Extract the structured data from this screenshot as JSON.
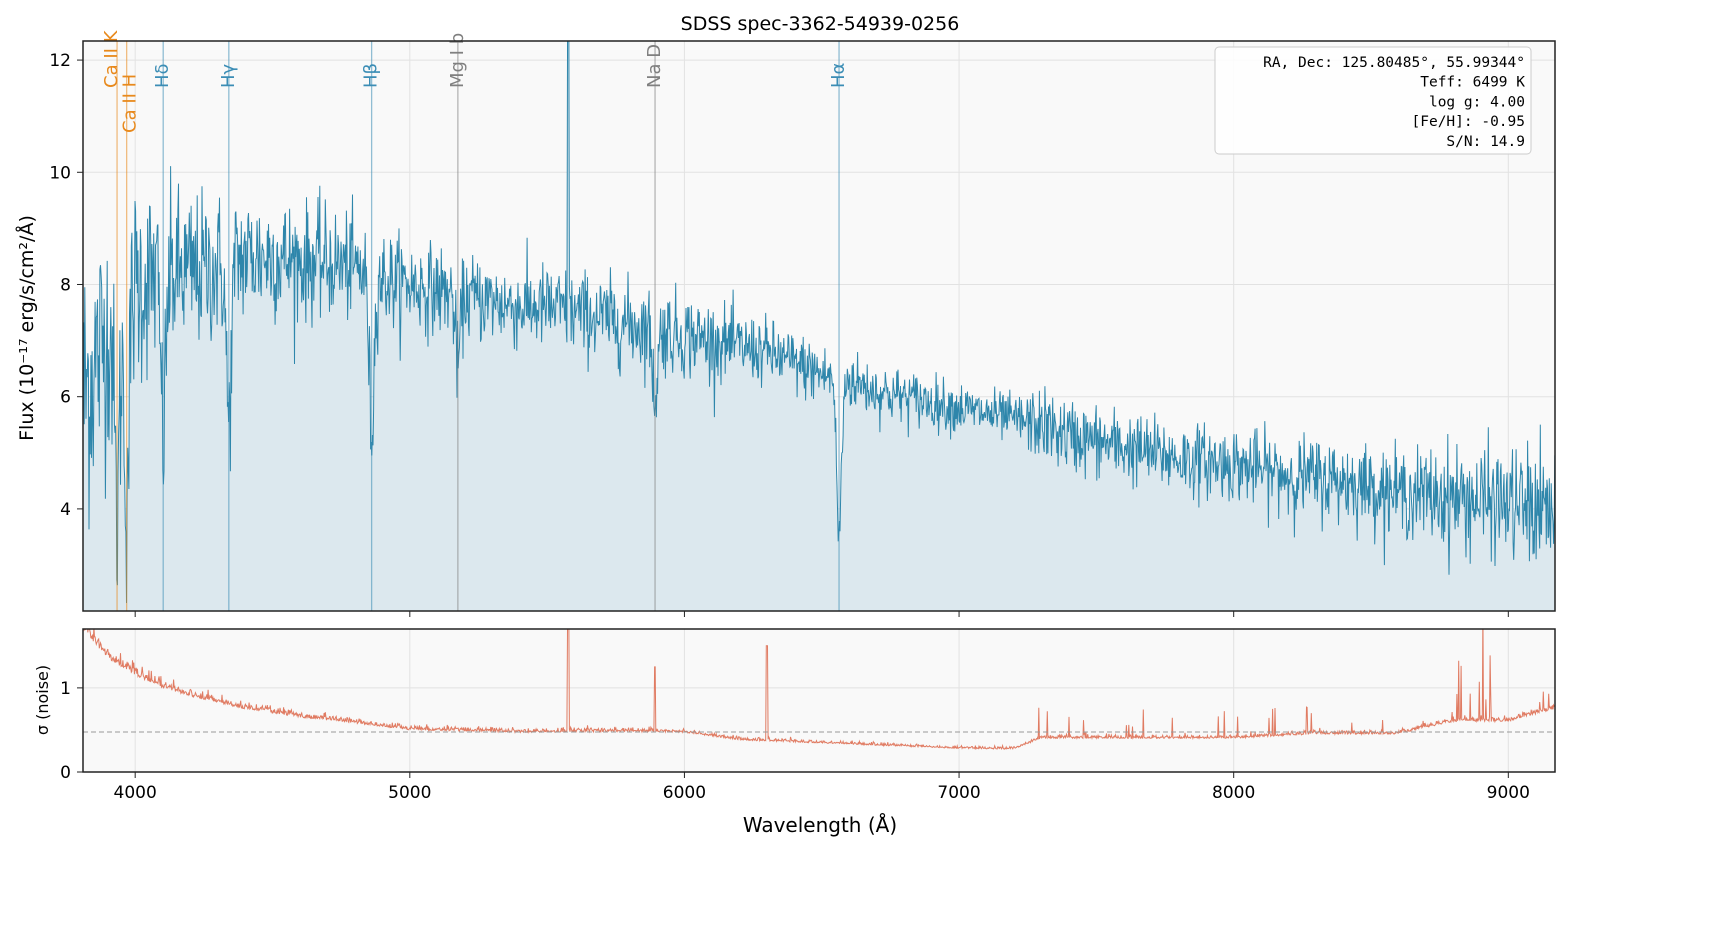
{
  "chart_data": [
    {
      "type": "line",
      "panel": "flux",
      "title": "SDSS spec-3362-54939-0256",
      "xlabel": "Wavelength (Å)",
      "ylabel": "Flux (10⁻¹⁷ erg/s/cm²/Å)",
      "xlim": [
        3810,
        9170
      ],
      "ylim": [
        2.18,
        12.34
      ],
      "xticks": [
        4000,
        5000,
        6000,
        7000,
        8000,
        9000
      ],
      "yticks": [
        4,
        6,
        8,
        10,
        12
      ],
      "grid": true,
      "series": [
        {
          "name": "flux",
          "color": "#2e86ab",
          "fill": "#dce8ee",
          "x": [
            3810,
            3900,
            4000,
            4100,
            4200,
            4300,
            4400,
            4500,
            4600,
            4700,
            4800,
            4900,
            5000,
            5100,
            5200,
            5300,
            5400,
            5500,
            5600,
            5700,
            5800,
            5900,
            6000,
            6100,
            6200,
            6300,
            6400,
            6500,
            6600,
            6700,
            6800,
            6900,
            7000,
            7100,
            7200,
            7300,
            7400,
            7500,
            7600,
            7700,
            7800,
            7900,
            8000,
            8100,
            8200,
            8300,
            8400,
            8500,
            8600,
            8700,
            8800,
            8900,
            9000,
            9100,
            9170
          ],
          "y": [
            6.0,
            7.2,
            8.0,
            8.2,
            8.2,
            8.3,
            8.5,
            8.5,
            8.4,
            8.4,
            8.3,
            8.1,
            8.0,
            7.9,
            7.8,
            7.7,
            7.6,
            7.6,
            7.5,
            7.4,
            7.3,
            7.2,
            7.1,
            7.0,
            6.9,
            6.8,
            6.6,
            6.4,
            6.3,
            6.1,
            6.0,
            5.9,
            5.8,
            5.7,
            5.6,
            5.5,
            5.3,
            5.2,
            5.1,
            5.0,
            4.9,
            4.85,
            4.8,
            4.7,
            4.6,
            4.55,
            4.5,
            4.4,
            4.3,
            4.25,
            4.2,
            4.15,
            4.1,
            4.0,
            3.9
          ]
        }
      ],
      "lines": [
        {
          "label": "Ca II K",
          "wavelength": 3934,
          "color": "#e8891c",
          "group": "ca"
        },
        {
          "label": "Ca II H",
          "wavelength": 3969,
          "color": "#e8891c",
          "group": "ca"
        },
        {
          "label": "Hδ",
          "wavelength": 4102,
          "color": "#3b8db5",
          "group": "h"
        },
        {
          "label": "Hγ",
          "wavelength": 4341,
          "color": "#3b8db5",
          "group": "h"
        },
        {
          "label": "Hβ",
          "wavelength": 4861,
          "color": "#3b8db5",
          "group": "h"
        },
        {
          "label": "Mg I b",
          "wavelength": 5175,
          "color": "#808080",
          "group": "metal"
        },
        {
          "label": "Na D",
          "wavelength": 5893,
          "color": "#808080",
          "group": "metal"
        },
        {
          "label": "Hα",
          "wavelength": 6563,
          "color": "#3b8db5",
          "group": "h"
        }
      ],
      "info_box": [
        "RA, Dec: 125.80485°, 55.99344°",
        "Teff: 6499 K",
        "log g: 4.00",
        "[Fe/H]: -0.95",
        "S/N: 14.9"
      ]
    },
    {
      "type": "line",
      "panel": "noise",
      "ylabel": "σ (noise)",
      "xlim": [
        3810,
        9170
      ],
      "ylim": [
        0,
        1.7
      ],
      "yticks": [
        0,
        1
      ],
      "median_line": 0.476,
      "series": [
        {
          "name": "sigma",
          "color": "#e07b62",
          "x": [
            3810,
            3900,
            4000,
            4100,
            4200,
            4400,
            4600,
            4800,
            5000,
            5400,
            5800,
            6000,
            6200,
            6600,
            7000,
            7200,
            7300,
            7600,
            8000,
            8300,
            8600,
            8800,
            9000,
            9170
          ],
          "y": [
            1.7,
            1.35,
            1.15,
            1.0,
            0.9,
            0.75,
            0.65,
            0.58,
            0.5,
            0.47,
            0.48,
            0.47,
            0.38,
            0.33,
            0.28,
            0.27,
            0.4,
            0.4,
            0.4,
            0.45,
            0.45,
            0.6,
            0.6,
            0.75
          ]
        }
      ]
    }
  ]
}
